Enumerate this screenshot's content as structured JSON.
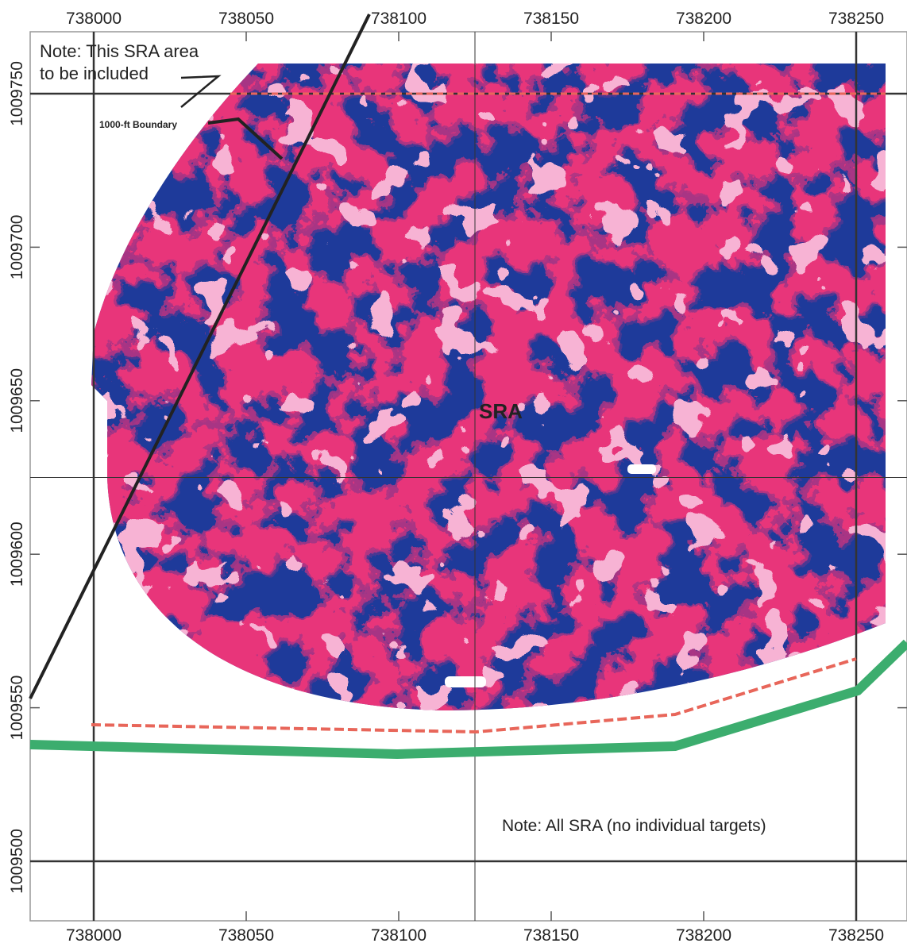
{
  "x_axis": {
    "ticks": [
      "738000",
      "738050",
      "738100",
      "738150",
      "738200",
      "738250"
    ]
  },
  "y_axis": {
    "ticks": [
      "1009750",
      "1009700",
      "1009650",
      "1009600",
      "1009550",
      "1009500"
    ]
  },
  "annotations": {
    "note_top_line1": "Note: This SRA area",
    "note_top_line2": "to be included",
    "boundary": "1000-ft Boundary",
    "area": "SRA",
    "note_bottom": "Note: All SRA (no individual targets)"
  }
}
